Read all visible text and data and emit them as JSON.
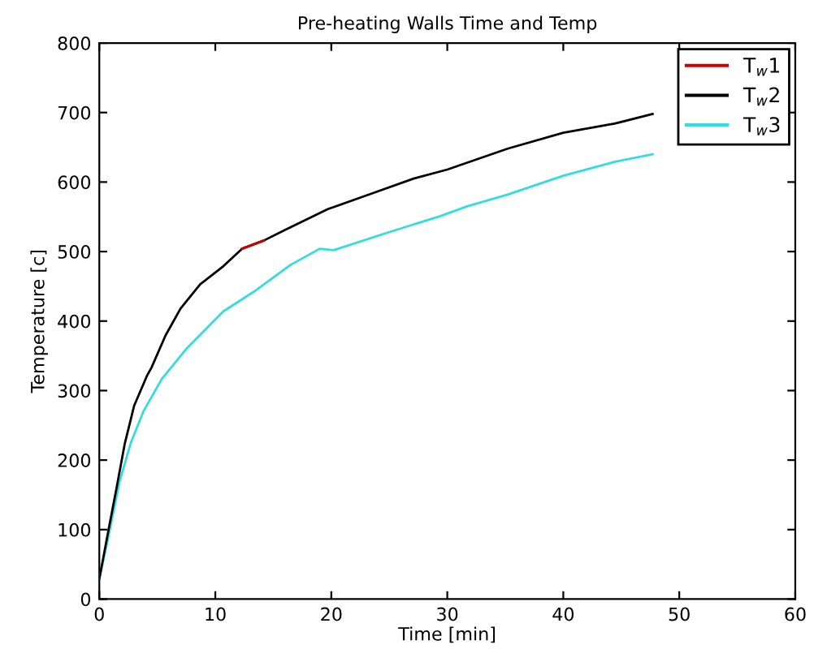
{
  "chart_data": {
    "type": "line",
    "title": "Pre-heating Walls Time and Temp",
    "xlabel": "Time [min]",
    "ylabel": "Temperature [c]",
    "xlim": [
      0,
      60
    ],
    "ylim": [
      0,
      800
    ],
    "xticks": [
      0,
      10,
      20,
      30,
      40,
      50,
      60
    ],
    "yticks": [
      0,
      100,
      200,
      300,
      400,
      500,
      600,
      700,
      800
    ],
    "grid": false,
    "legend": "top right",
    "series": [
      {
        "name": "T$_{w}$1",
        "color": "#cc0000",
        "x": [
          12.3,
          14.2
        ],
        "values": [
          504,
          516
        ]
      },
      {
        "name": "T$_{w}$2",
        "color": "#000000",
        "x": [
          0,
          0.8,
          1.5,
          2.2,
          3.0,
          4.1,
          4.5,
          5.7,
          7.0,
          8.7,
          10.7,
          12.3,
          14.2,
          16.0,
          19.7,
          23.4,
          27.1,
          30,
          35.2,
          40,
          44.4,
          47.7
        ],
        "values": [
          29,
          100,
          161,
          224,
          278,
          321,
          333,
          379,
          418,
          453,
          479,
          504,
          516,
          531,
          561,
          583,
          605,
          618,
          648,
          671,
          684,
          698
        ]
      },
      {
        "name": "T$_{w}$3",
        "color": "#33dddd",
        "x": [
          0,
          0.8,
          1.75,
          2.7,
          3.8,
          5.4,
          7.5,
          10.7,
          13.3,
          16.5,
          19.0,
          20.2,
          24.8,
          29.4,
          31.7,
          35.2,
          40,
          44.4,
          47.7
        ],
        "values": [
          29,
          91,
          169,
          224,
          270,
          317,
          360,
          414,
          442,
          481,
          504,
          502,
          527,
          551,
          565,
          582,
          609,
          629,
          640
        ]
      }
    ]
  }
}
